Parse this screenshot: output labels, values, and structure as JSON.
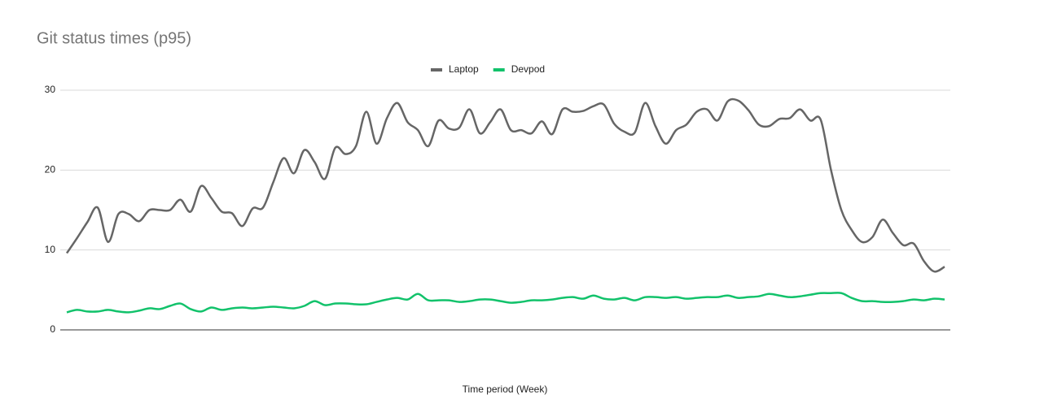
{
  "chart_data": {
    "type": "line",
    "title": "Git status times (p95)",
    "x_label": "Time period (Week)",
    "categories": [
      null,
      null,
      null,
      null,
      null,
      null,
      null,
      null,
      null,
      null,
      null,
      null,
      null,
      null,
      null,
      null,
      null,
      null,
      null,
      null,
      null,
      null,
      null,
      null,
      null,
      null,
      null,
      null,
      null,
      null,
      null,
      null,
      null,
      null,
      null,
      null,
      null,
      null,
      null,
      null,
      null,
      null,
      null,
      null,
      null,
      null,
      null,
      null,
      null,
      null,
      null,
      null,
      null,
      null,
      null,
      null,
      null,
      null,
      null,
      null,
      null,
      null,
      null,
      null,
      null,
      null,
      null,
      null,
      null,
      null,
      null,
      null,
      null,
      null,
      null,
      null,
      null,
      null,
      null,
      null,
      null,
      null,
      null,
      null,
      null,
      null
    ],
    "series": [
      {
        "name": "Laptop",
        "color": "#666666",
        "values": [
          9.6,
          11.5,
          13.5,
          15.3,
          11.0,
          14.5,
          14.5,
          13.6,
          15.0,
          15.0,
          15.0,
          16.3,
          14.8,
          18.0,
          16.5,
          14.8,
          14.6,
          13.0,
          15.2,
          15.3,
          18.5,
          21.5,
          19.6,
          22.5,
          21.0,
          18.9,
          22.8,
          22.0,
          23.0,
          27.3,
          23.3,
          26.5,
          28.4,
          26.0,
          25.0,
          23.0,
          26.2,
          25.2,
          25.3,
          27.6,
          24.6,
          26.0,
          27.6,
          25.0,
          25.0,
          24.6,
          26.1,
          24.5,
          27.6,
          27.3,
          27.4,
          28.0,
          28.2,
          25.8,
          24.8,
          24.7,
          28.4,
          25.5,
          23.3,
          25.0,
          25.7,
          27.3,
          27.6,
          26.2,
          28.6,
          28.7,
          27.5,
          25.7,
          25.5,
          26.4,
          26.5,
          27.6,
          26.2,
          26.3,
          20.0,
          15.0,
          12.5,
          11.0,
          11.6,
          13.8,
          12.1,
          10.6,
          10.8,
          8.6,
          7.3,
          7.9
        ]
      },
      {
        "name": "Devpod",
        "color": "#12c26b",
        "values": [
          2.2,
          2.5,
          2.3,
          2.3,
          2.5,
          2.3,
          2.2,
          2.4,
          2.7,
          2.6,
          3.0,
          3.3,
          2.6,
          2.3,
          2.8,
          2.5,
          2.7,
          2.8,
          2.7,
          2.8,
          2.9,
          2.8,
          2.7,
          3.0,
          3.6,
          3.1,
          3.3,
          3.3,
          3.2,
          3.2,
          3.5,
          3.8,
          4.0,
          3.8,
          4.5,
          3.7,
          3.7,
          3.7,
          3.5,
          3.6,
          3.8,
          3.8,
          3.6,
          3.4,
          3.5,
          3.7,
          3.7,
          3.8,
          4.0,
          4.1,
          3.9,
          4.3,
          3.9,
          3.8,
          4.0,
          3.7,
          4.1,
          4.1,
          4.0,
          4.1,
          3.9,
          4.0,
          4.1,
          4.1,
          4.3,
          4.0,
          4.1,
          4.2,
          4.5,
          4.3,
          4.1,
          4.2,
          4.4,
          4.6,
          4.6,
          4.6,
          4.0,
          3.6,
          3.6,
          3.5,
          3.5,
          3.6,
          3.8,
          3.7,
          3.9,
          3.8
        ]
      }
    ],
    "ylim": [
      0,
      30
    ],
    "yticks": [
      0,
      10,
      20,
      30
    ],
    "grid": true,
    "legend": "top"
  }
}
